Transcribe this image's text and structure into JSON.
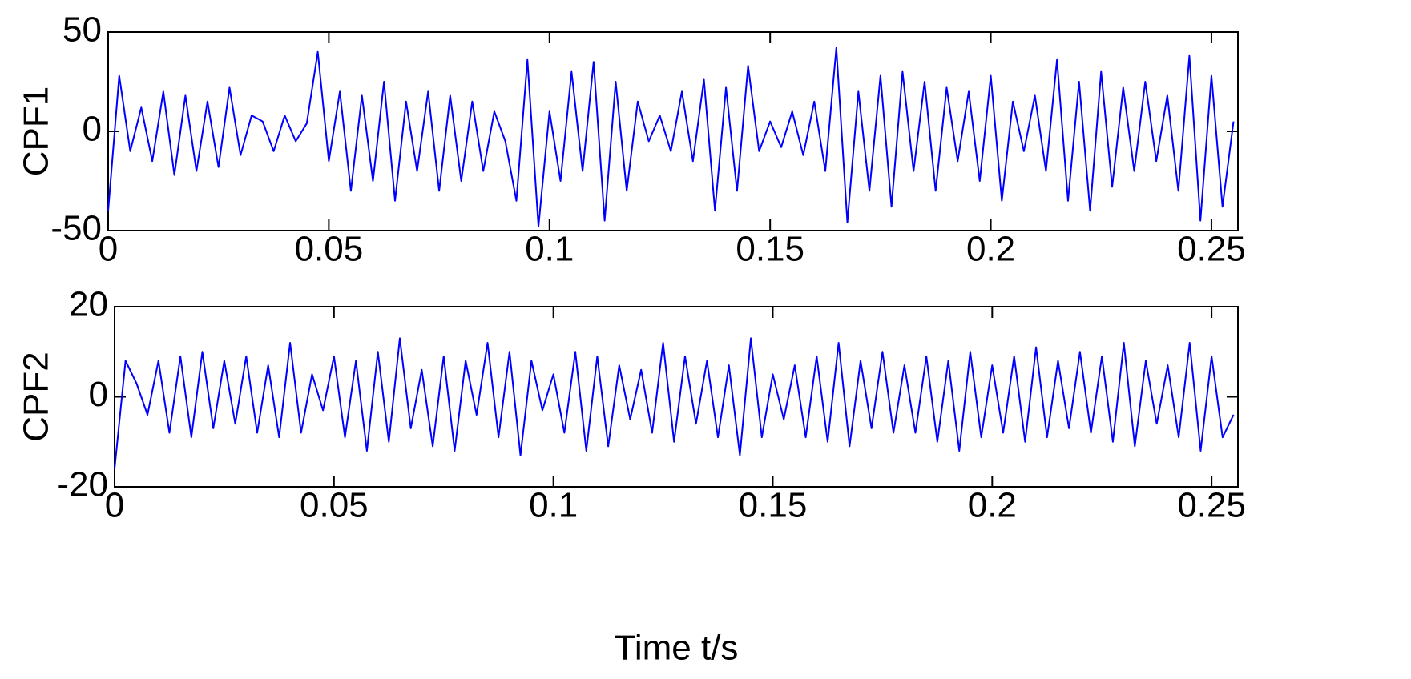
{
  "chart_data": [
    {
      "type": "line",
      "ylabel": "CPF1",
      "color": "#0000ff",
      "x": [
        0,
        0.0025,
        0.005,
        0.0075,
        0.01,
        0.0125,
        0.015,
        0.0175,
        0.02,
        0.0225,
        0.025,
        0.0275,
        0.03,
        0.0325,
        0.035,
        0.0375,
        0.04,
        0.0425,
        0.045,
        0.0475,
        0.05,
        0.0525,
        0.055,
        0.0575,
        0.06,
        0.0625,
        0.065,
        0.0675,
        0.07,
        0.0725,
        0.075,
        0.0775,
        0.08,
        0.0825,
        0.085,
        0.0875,
        0.09,
        0.0925,
        0.095,
        0.0975,
        0.1,
        0.1025,
        0.105,
        0.1075,
        0.11,
        0.1125,
        0.115,
        0.1175,
        0.12,
        0.1225,
        0.125,
        0.1275,
        0.13,
        0.1325,
        0.135,
        0.1375,
        0.14,
        0.1425,
        0.145,
        0.1475,
        0.15,
        0.1525,
        0.155,
        0.1575,
        0.16,
        0.1625,
        0.165,
        0.1675,
        0.17,
        0.1725,
        0.175,
        0.1775,
        0.18,
        0.1825,
        0.185,
        0.1875,
        0.19,
        0.1925,
        0.195,
        0.1975,
        0.2,
        0.2025,
        0.205,
        0.2075,
        0.21,
        0.2125,
        0.215,
        0.2175,
        0.22,
        0.2225,
        0.225,
        0.2275,
        0.23,
        0.2325,
        0.235,
        0.2375,
        0.24,
        0.2425,
        0.245,
        0.2475,
        0.25,
        0.2525,
        0.255
      ],
      "values": [
        -40,
        28,
        -10,
        12,
        -15,
        20,
        -22,
        18,
        -20,
        15,
        -18,
        22,
        -12,
        8,
        5,
        -10,
        8,
        -5,
        4,
        40,
        -15,
        20,
        -30,
        18,
        -25,
        25,
        -35,
        15,
        -20,
        20,
        -30,
        18,
        -25,
        15,
        -20,
        10,
        -5,
        -35,
        36,
        -48,
        10,
        -25,
        30,
        -20,
        35,
        -45,
        25,
        -30,
        15,
        -5,
        8,
        -10,
        20,
        -15,
        26,
        -40,
        22,
        -30,
        33,
        -10,
        5,
        -8,
        10,
        -12,
        15,
        -20,
        42,
        -46,
        20,
        -30,
        28,
        -38,
        30,
        -20,
        25,
        -30,
        22,
        -15,
        20,
        -25,
        28,
        -35,
        15,
        -10,
        18,
        -20,
        36,
        -35,
        25,
        -40,
        30,
        -28,
        22,
        -20,
        25,
        -15,
        18,
        -30,
        38,
        -45,
        28,
        -38,
        5
      ],
      "xlim": [
        0,
        0.256
      ],
      "xticks": [
        0,
        0.05,
        0.1,
        0.15,
        0.2,
        0.25
      ],
      "ylim": [
        -50,
        50
      ],
      "yticks": [
        -50,
        0,
        50
      ]
    },
    {
      "type": "line",
      "ylabel": "CPF2",
      "xlabel": "Time t/s",
      "color": "#0000ff",
      "x": [
        0,
        0.0025,
        0.005,
        0.0075,
        0.01,
        0.0125,
        0.015,
        0.0175,
        0.02,
        0.0225,
        0.025,
        0.0275,
        0.03,
        0.0325,
        0.035,
        0.0375,
        0.04,
        0.0425,
        0.045,
        0.0475,
        0.05,
        0.0525,
        0.055,
        0.0575,
        0.06,
        0.0625,
        0.065,
        0.0675,
        0.07,
        0.0725,
        0.075,
        0.0775,
        0.08,
        0.0825,
        0.085,
        0.0875,
        0.09,
        0.0925,
        0.095,
        0.0975,
        0.1,
        0.1025,
        0.105,
        0.1075,
        0.11,
        0.1125,
        0.115,
        0.1175,
        0.12,
        0.1225,
        0.125,
        0.1275,
        0.13,
        0.1325,
        0.135,
        0.1375,
        0.14,
        0.1425,
        0.145,
        0.1475,
        0.15,
        0.1525,
        0.155,
        0.1575,
        0.16,
        0.1625,
        0.165,
        0.1675,
        0.17,
        0.1725,
        0.175,
        0.1775,
        0.18,
        0.1825,
        0.185,
        0.1875,
        0.19,
        0.1925,
        0.195,
        0.1975,
        0.2,
        0.2025,
        0.205,
        0.2075,
        0.21,
        0.2125,
        0.215,
        0.2175,
        0.22,
        0.2225,
        0.225,
        0.2275,
        0.23,
        0.2325,
        0.235,
        0.2375,
        0.24,
        0.2425,
        0.245,
        0.2475,
        0.25,
        0.2525,
        0.255
      ],
      "values": [
        -16,
        8,
        3,
        -4,
        8,
        -8,
        9,
        -9,
        10,
        -7,
        8,
        -6,
        9,
        -8,
        7,
        -9,
        12,
        -8,
        5,
        -3,
        9,
        -9,
        8,
        -12,
        10,
        -10,
        13,
        -7,
        6,
        -11,
        9,
        -12,
        8,
        -4,
        12,
        -9,
        10,
        -13,
        8,
        -3,
        5,
        -8,
        10,
        -12,
        9,
        -11,
        7,
        -5,
        6,
        -8,
        12,
        -10,
        9,
        -6,
        8,
        -9,
        7,
        -13,
        13,
        -9,
        5,
        -5,
        7,
        -9,
        9,
        -10,
        12,
        -11,
        8,
        -7,
        10,
        -8,
        7,
        -8,
        9,
        -10,
        8,
        -12,
        10,
        -9,
        7,
        -8,
        9,
        -10,
        11,
        -9,
        8,
        -7,
        10,
        -8,
        9,
        -10,
        12,
        -11,
        8,
        -6,
        7,
        -9,
        12,
        -12,
        9,
        -9,
        -4
      ],
      "xlim": [
        0,
        0.256
      ],
      "xticks": [
        0,
        0.05,
        0.1,
        0.15,
        0.2,
        0.25
      ],
      "ylim": [
        -20,
        20
      ],
      "yticks": [
        -20,
        0,
        20
      ]
    }
  ]
}
